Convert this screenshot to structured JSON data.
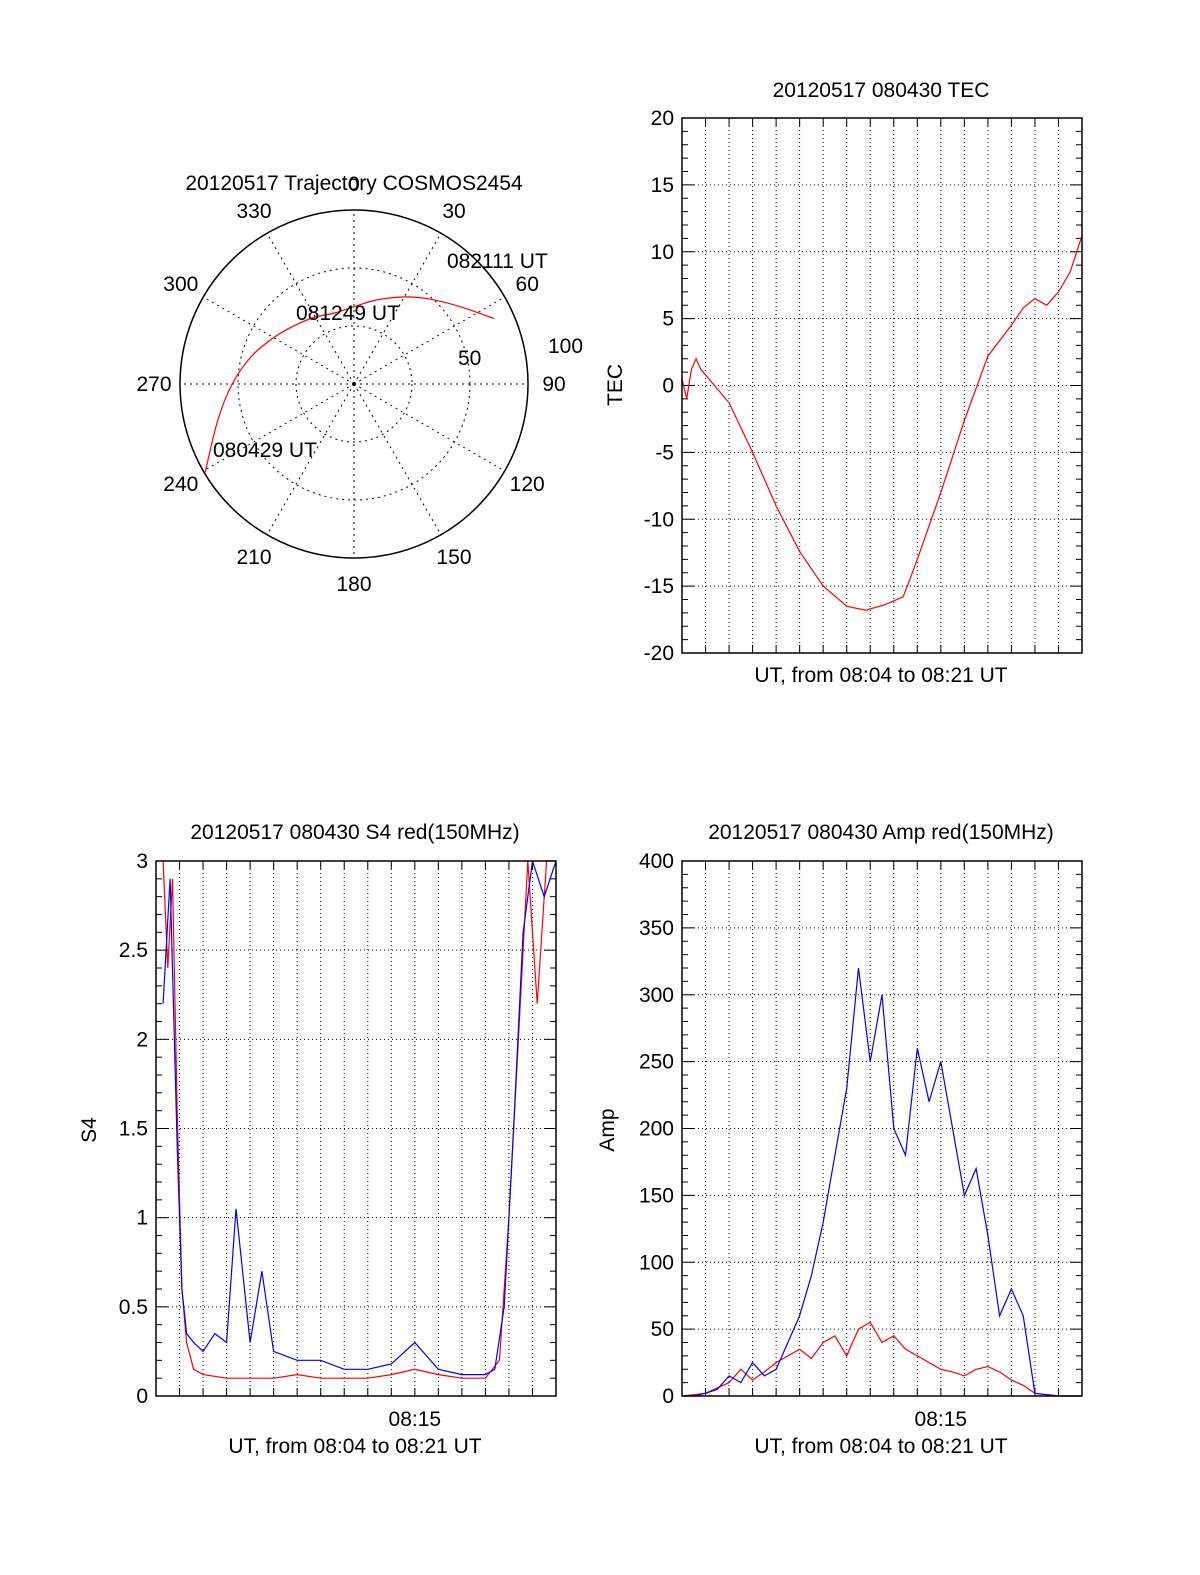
{
  "chart_data": [
    {
      "id": "trajectory",
      "type": "polar",
      "title": "20120517 Trajectory COSMOS2454",
      "azimuth_labels": [
        "0",
        "30",
        "60",
        "90",
        "120",
        "150",
        "180",
        "210",
        "240",
        "270",
        "300",
        "330"
      ],
      "radial_labels": [
        "50",
        "100"
      ],
      "grid": true,
      "series": [
        {
          "color": "#ff0000",
          "points_az_el": [
            [
              239,
              0
            ],
            [
              255,
              17
            ],
            [
              270,
              27
            ],
            [
              285,
              35
            ],
            [
              300,
              42
            ],
            [
              315,
              47
            ],
            [
              330,
              50
            ],
            [
              345,
              52
            ],
            [
              0,
              50
            ],
            [
              15,
              45
            ],
            [
              30,
              38
            ],
            [
              42,
              31
            ],
            [
              54,
              22
            ],
            [
              65,
              10
            ]
          ]
        }
      ],
      "annotations": [
        {
          "text": "082111 UT"
        },
        {
          "text": "081249 UT"
        },
        {
          "text": "080429 UT"
        }
      ]
    },
    {
      "id": "tec",
      "type": "line",
      "title": "20120517 080430 TEC",
      "xlabel": "UT, from 08:04 to 08:21 UT",
      "ylabel": "TEC",
      "xlim": [
        0,
        17
      ],
      "ylim": [
        -20,
        20
      ],
      "yticks": [
        "20",
        "15",
        "10",
        "5",
        "0",
        "-5",
        "-10",
        "-15",
        "-20"
      ],
      "grid": true,
      "series": [
        {
          "color": "#ff0000",
          "x": [
            0.0,
            0.2,
            0.4,
            0.6,
            0.8,
            1.0,
            2.0,
            3.0,
            4.0,
            5.0,
            6.0,
            7.0,
            7.8,
            8.6,
            9.4,
            10.0,
            11.0,
            12.0,
            13.0,
            14.0,
            14.5,
            15.0,
            15.5,
            16.0,
            16.5,
            17.0
          ],
          "y": [
            0.5,
            -1.0,
            1.2,
            2.0,
            1.2,
            0.8,
            -1.3,
            -5.0,
            -9.0,
            -12.4,
            -15.0,
            -16.5,
            -16.8,
            -16.4,
            -15.8,
            -13.0,
            -8.0,
            -2.6,
            2.2,
            4.5,
            5.8,
            6.5,
            6.0,
            7.0,
            8.5,
            11.2
          ]
        }
      ]
    },
    {
      "id": "s4",
      "type": "line",
      "title": "20120517 080430 S4 red(150MHz)",
      "xlabel": "UT, from 08:04 to 08:21 UT",
      "ylabel": "S4",
      "xlim": [
        0,
        17
      ],
      "ylim": [
        0,
        3
      ],
      "xticks": [
        "08:15"
      ],
      "xtick_values": [
        11
      ],
      "yticks": [
        "3",
        "2.5",
        "2",
        "1.5",
        "1",
        "0.5",
        "0"
      ],
      "grid": true,
      "series": [
        {
          "color": "#ff0000",
          "x": [
            0.3,
            0.5,
            0.7,
            0.9,
            1.1,
            1.3,
            1.6,
            2.0,
            3.0,
            4.0,
            5.0,
            6.0,
            7.0,
            8.0,
            9.0,
            10.0,
            11.0,
            12.0,
            13.0,
            14.0,
            14.6,
            15.0,
            15.4,
            15.8,
            16.2,
            16.6,
            17.0
          ],
          "y": [
            3.0,
            2.4,
            2.9,
            1.6,
            0.6,
            0.3,
            0.15,
            0.12,
            0.1,
            0.1,
            0.1,
            0.12,
            0.1,
            0.1,
            0.1,
            0.12,
            0.15,
            0.12,
            0.1,
            0.1,
            0.2,
            1.0,
            2.0,
            3.0,
            2.2,
            3.0,
            3.0
          ]
        },
        {
          "color": "#0000ff",
          "x": [
            0.3,
            0.6,
            0.9,
            1.1,
            1.3,
            1.6,
            2.0,
            2.5,
            3.0,
            3.4,
            4.0,
            4.5,
            5.0,
            6.0,
            7.0,
            8.0,
            9.0,
            10.0,
            11.0,
            12.0,
            13.0,
            14.0,
            14.4,
            14.8,
            15.2,
            15.6,
            16.0,
            16.5,
            17.0
          ],
          "y": [
            2.2,
            2.9,
            1.4,
            0.6,
            0.35,
            0.3,
            0.25,
            0.35,
            0.3,
            1.05,
            0.3,
            0.7,
            0.25,
            0.2,
            0.2,
            0.15,
            0.15,
            0.18,
            0.3,
            0.15,
            0.12,
            0.12,
            0.15,
            0.5,
            1.5,
            2.6,
            3.0,
            2.8,
            3.0
          ]
        }
      ]
    },
    {
      "id": "amp",
      "type": "line",
      "title": "20120517 080430 Amp red(150MHz)",
      "xlabel": "UT, from 08:04 to 08:21 UT",
      "ylabel": "Amp",
      "xlim": [
        0,
        17
      ],
      "ylim": [
        0,
        400
      ],
      "xticks": [
        "08:15"
      ],
      "xtick_values": [
        11
      ],
      "yticks": [
        "400",
        "350",
        "300",
        "250",
        "200",
        "150",
        "100",
        "50",
        "0"
      ],
      "grid": true,
      "series": [
        {
          "color": "#ff0000",
          "x": [
            0.0,
            1.0,
            2.0,
            2.5,
            3.0,
            3.5,
            4.0,
            4.5,
            5.0,
            5.5,
            6.0,
            6.5,
            7.0,
            7.5,
            8.0,
            8.5,
            9.0,
            9.5,
            10.0,
            10.5,
            11.0,
            11.5,
            12.0,
            12.5,
            13.0,
            13.5,
            14.0,
            14.5,
            15.0,
            16.0,
            17.0
          ],
          "y": [
            0,
            2,
            10,
            20,
            12,
            18,
            25,
            30,
            35,
            28,
            40,
            45,
            30,
            50,
            55,
            40,
            45,
            35,
            30,
            25,
            20,
            18,
            15,
            20,
            22,
            18,
            12,
            8,
            2,
            0,
            0
          ]
        },
        {
          "color": "#0000ff",
          "x": [
            0.0,
            0.5,
            1.0,
            1.5,
            2.0,
            2.5,
            3.0,
            3.5,
            4.0,
            4.5,
            5.0,
            5.5,
            6.0,
            6.5,
            7.0,
            7.5,
            8.0,
            8.5,
            9.0,
            9.5,
            10.0,
            10.5,
            11.0,
            11.5,
            12.0,
            12.5,
            13.0,
            13.5,
            14.0,
            14.5,
            15.0,
            15.5,
            16.0,
            17.0
          ],
          "y": [
            0,
            0,
            2,
            5,
            15,
            10,
            25,
            15,
            20,
            40,
            60,
            90,
            130,
            180,
            230,
            320,
            250,
            300,
            200,
            180,
            260,
            220,
            250,
            200,
            150,
            170,
            120,
            60,
            80,
            60,
            2,
            1,
            0,
            0
          ]
        }
      ]
    }
  ]
}
